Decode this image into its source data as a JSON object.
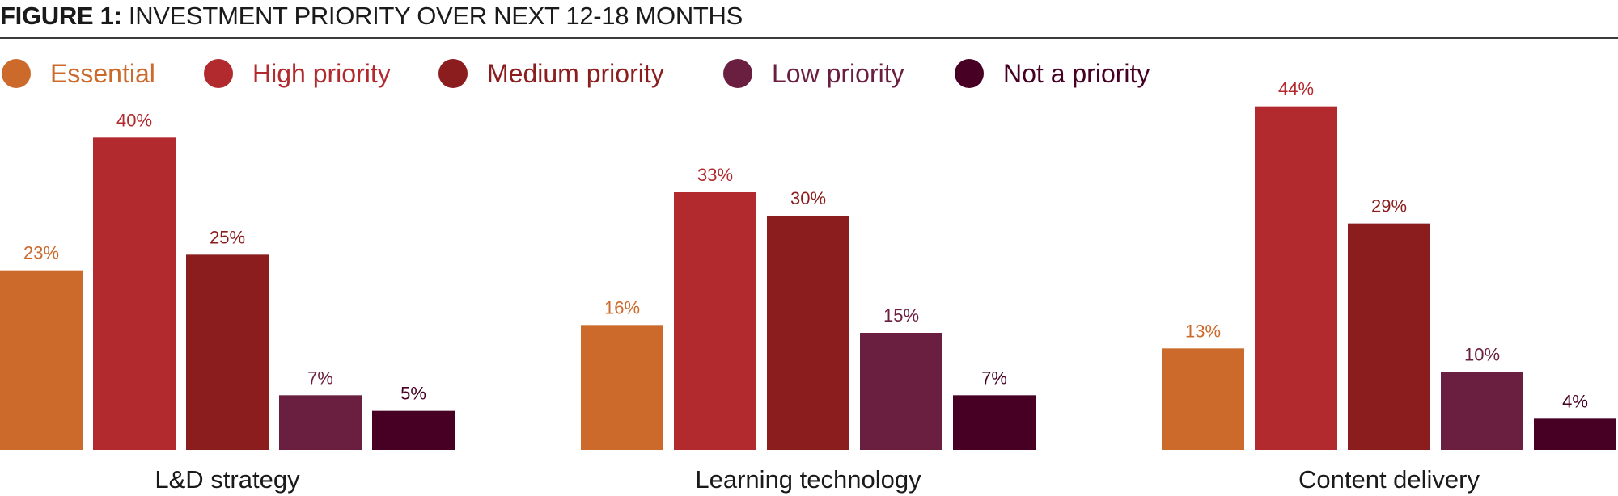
{
  "header": {
    "title_lead": "FIGURE 1:",
    "title_rest": " INVESTMENT PRIORITY OVER NEXT 12-18 MONTHS"
  },
  "legend": [
    {
      "label": "Essential",
      "color": "#cc6a2c"
    },
    {
      "label": "High priority",
      "color": "#b2292e"
    },
    {
      "label": "Medium priority",
      "color": "#8b1d1e"
    },
    {
      "label": "Low priority",
      "color": "#6b1f40"
    },
    {
      "label": "Not a priority",
      "color": "#470024"
    }
  ],
  "chart_data": {
    "type": "bar",
    "title": "INVESTMENT PRIORITY OVER NEXT 12-18 MONTHS",
    "categories": [
      "L&D strategy",
      "Learning technology",
      "Content delivery"
    ],
    "series": [
      {
        "name": "Essential",
        "values": [
          23,
          16,
          13
        ],
        "labels": [
          "23%",
          "16%",
          "13%"
        ],
        "color": "#cc6a2c"
      },
      {
        "name": "High priority",
        "values": [
          40,
          33,
          44
        ],
        "labels": [
          "40%",
          "33%",
          "44%"
        ],
        "color": "#b2292e"
      },
      {
        "name": "Medium priority",
        "values": [
          25,
          30,
          29
        ],
        "labels": [
          "25%",
          "30%",
          "29%"
        ],
        "color": "#8b1d1e"
      },
      {
        "name": "Low priority",
        "values": [
          7,
          15,
          10
        ],
        "labels": [
          "7%",
          "15%",
          "10%"
        ],
        "color": "#6b1f40"
      },
      {
        "name": "Not a priority",
        "values": [
          5,
          7,
          4
        ],
        "labels": [
          "5%",
          "7%",
          "4%"
        ],
        "color": "#470024"
      }
    ],
    "ylim": [
      0,
      44
    ],
    "grid": false,
    "legend_position": "top"
  }
}
